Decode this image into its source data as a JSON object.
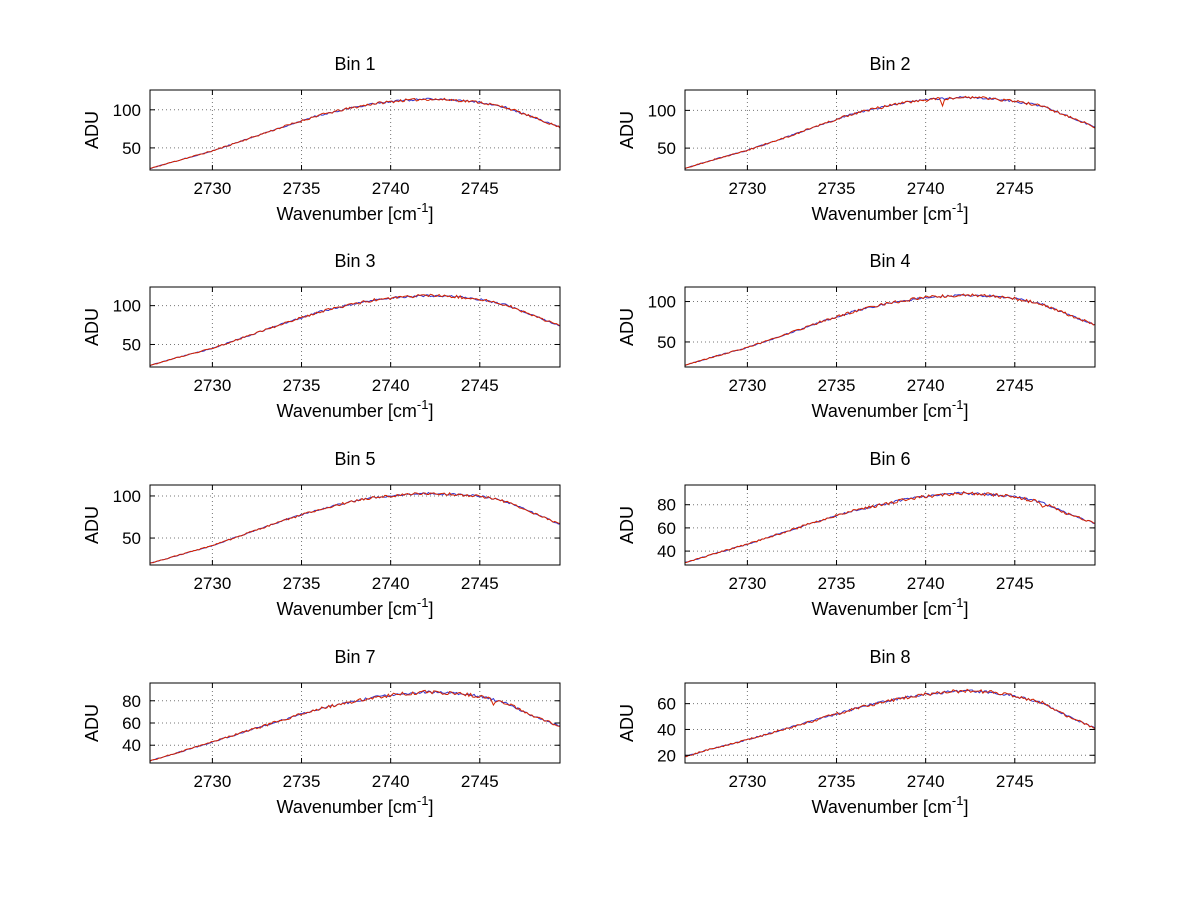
{
  "chart_data": {
    "type": "line",
    "layout": "8 subplots in 4 rows x 2 columns",
    "grid": "dotted",
    "legend": "none",
    "background": "#ffffff",
    "axis_color": "#000000",
    "grid_color": "#777777",
    "series_colors": {
      "front": "#d42400",
      "back": "#3434cc"
    },
    "ylabel": "ADU",
    "xlabel_main": "Wavenumber [cm",
    "xlabel_sup": "-1",
    "xlabel_end": "]",
    "xlim": [
      2726.5,
      2749.5
    ],
    "x_ticks": [
      2730,
      2735,
      2740,
      2745
    ],
    "x_tick_labels": [
      "2730",
      "2735",
      "2740",
      "2745"
    ],
    "anchors_x": [
      2726.5,
      2728,
      2730,
      2732,
      2734,
      2736,
      2737.5,
      2739,
      2740.5,
      2742,
      2743.5,
      2745,
      2746.5,
      2748,
      2749.5
    ],
    "charts": [
      {
        "title": "Bin 1",
        "ylim": [
          21,
          126
        ],
        "y_ticks": [
          50,
          100
        ],
        "y_tick_labels": [
          "50",
          "100"
        ],
        "anchors_y": [
          23,
          33,
          46,
          62,
          78,
          93,
          101,
          108,
          112,
          114,
          113,
          110,
          103,
          90,
          77
        ],
        "noise": 2.0
      },
      {
        "title": "Bin 2",
        "ylim": [
          21,
          127
        ],
        "y_ticks": [
          50,
          100
        ],
        "y_tick_labels": [
          "50",
          "100"
        ],
        "anchors_y": [
          23,
          34,
          47,
          63,
          80,
          96,
          104,
          111,
          115,
          117,
          116,
          112,
          106,
          92,
          78
        ],
        "noise": 2.2,
        "spike": {
          "x": 2740.9,
          "dy": -9
        }
      },
      {
        "title": "Bin 3",
        "ylim": [
          21,
          124
        ],
        "y_ticks": [
          50,
          100
        ],
        "y_tick_labels": [
          "50",
          "100"
        ],
        "anchors_y": [
          23,
          33,
          45,
          61,
          77,
          92,
          100,
          107,
          111,
          113,
          112,
          108,
          101,
          87,
          74
        ],
        "noise": 2.0
      },
      {
        "title": "Bin 4",
        "ylim": [
          19,
          118
        ],
        "y_ticks": [
          50,
          100
        ],
        "y_tick_labels": [
          "50",
          "100"
        ],
        "anchors_y": [
          21,
          31,
          43,
          58,
          74,
          88,
          96,
          102,
          106,
          108,
          107,
          104,
          97,
          84,
          71
        ],
        "noise": 2.2
      },
      {
        "title": "Bin 5",
        "ylim": [
          18,
          113
        ],
        "y_ticks": [
          50,
          100
        ],
        "y_tick_labels": [
          "50",
          "100"
        ],
        "anchors_y": [
          20,
          29,
          41,
          56,
          71,
          84,
          92,
          98,
          101,
          103,
          102,
          100,
          93,
          80,
          66
        ],
        "noise": 1.8
      },
      {
        "title": "Bin 6",
        "ylim": [
          28,
          97
        ],
        "y_ticks": [
          40,
          60,
          80
        ],
        "y_tick_labels": [
          "40",
          "60",
          "80"
        ],
        "anchors_y": [
          30,
          37,
          46,
          56,
          66,
          75,
          80,
          85,
          88,
          90,
          89,
          87,
          82,
          72,
          64
        ],
        "noise": 1.6,
        "spike": {
          "x": 2746.6,
          "dy": -5
        }
      },
      {
        "title": "Bin 7",
        "ylim": [
          24,
          96
        ],
        "y_ticks": [
          40,
          60,
          80
        ],
        "y_tick_labels": [
          "40",
          "60",
          "80"
        ],
        "anchors_y": [
          26,
          33,
          43,
          53,
          63,
          73,
          78,
          83,
          86,
          88,
          87,
          84,
          78,
          66,
          57
        ],
        "noise": 1.8,
        "spike": {
          "x": 2745.8,
          "dy": -6
        }
      },
      {
        "title": "Bin 8",
        "ylim": [
          14,
          76
        ],
        "y_ticks": [
          20,
          40,
          60
        ],
        "y_tick_labels": [
          "20",
          "40",
          "60"
        ],
        "anchors_y": [
          19,
          25,
          32,
          40,
          48,
          56,
          61,
          65,
          68,
          70,
          69,
          66,
          61,
          50,
          41
        ],
        "noise": 1.6
      }
    ]
  }
}
